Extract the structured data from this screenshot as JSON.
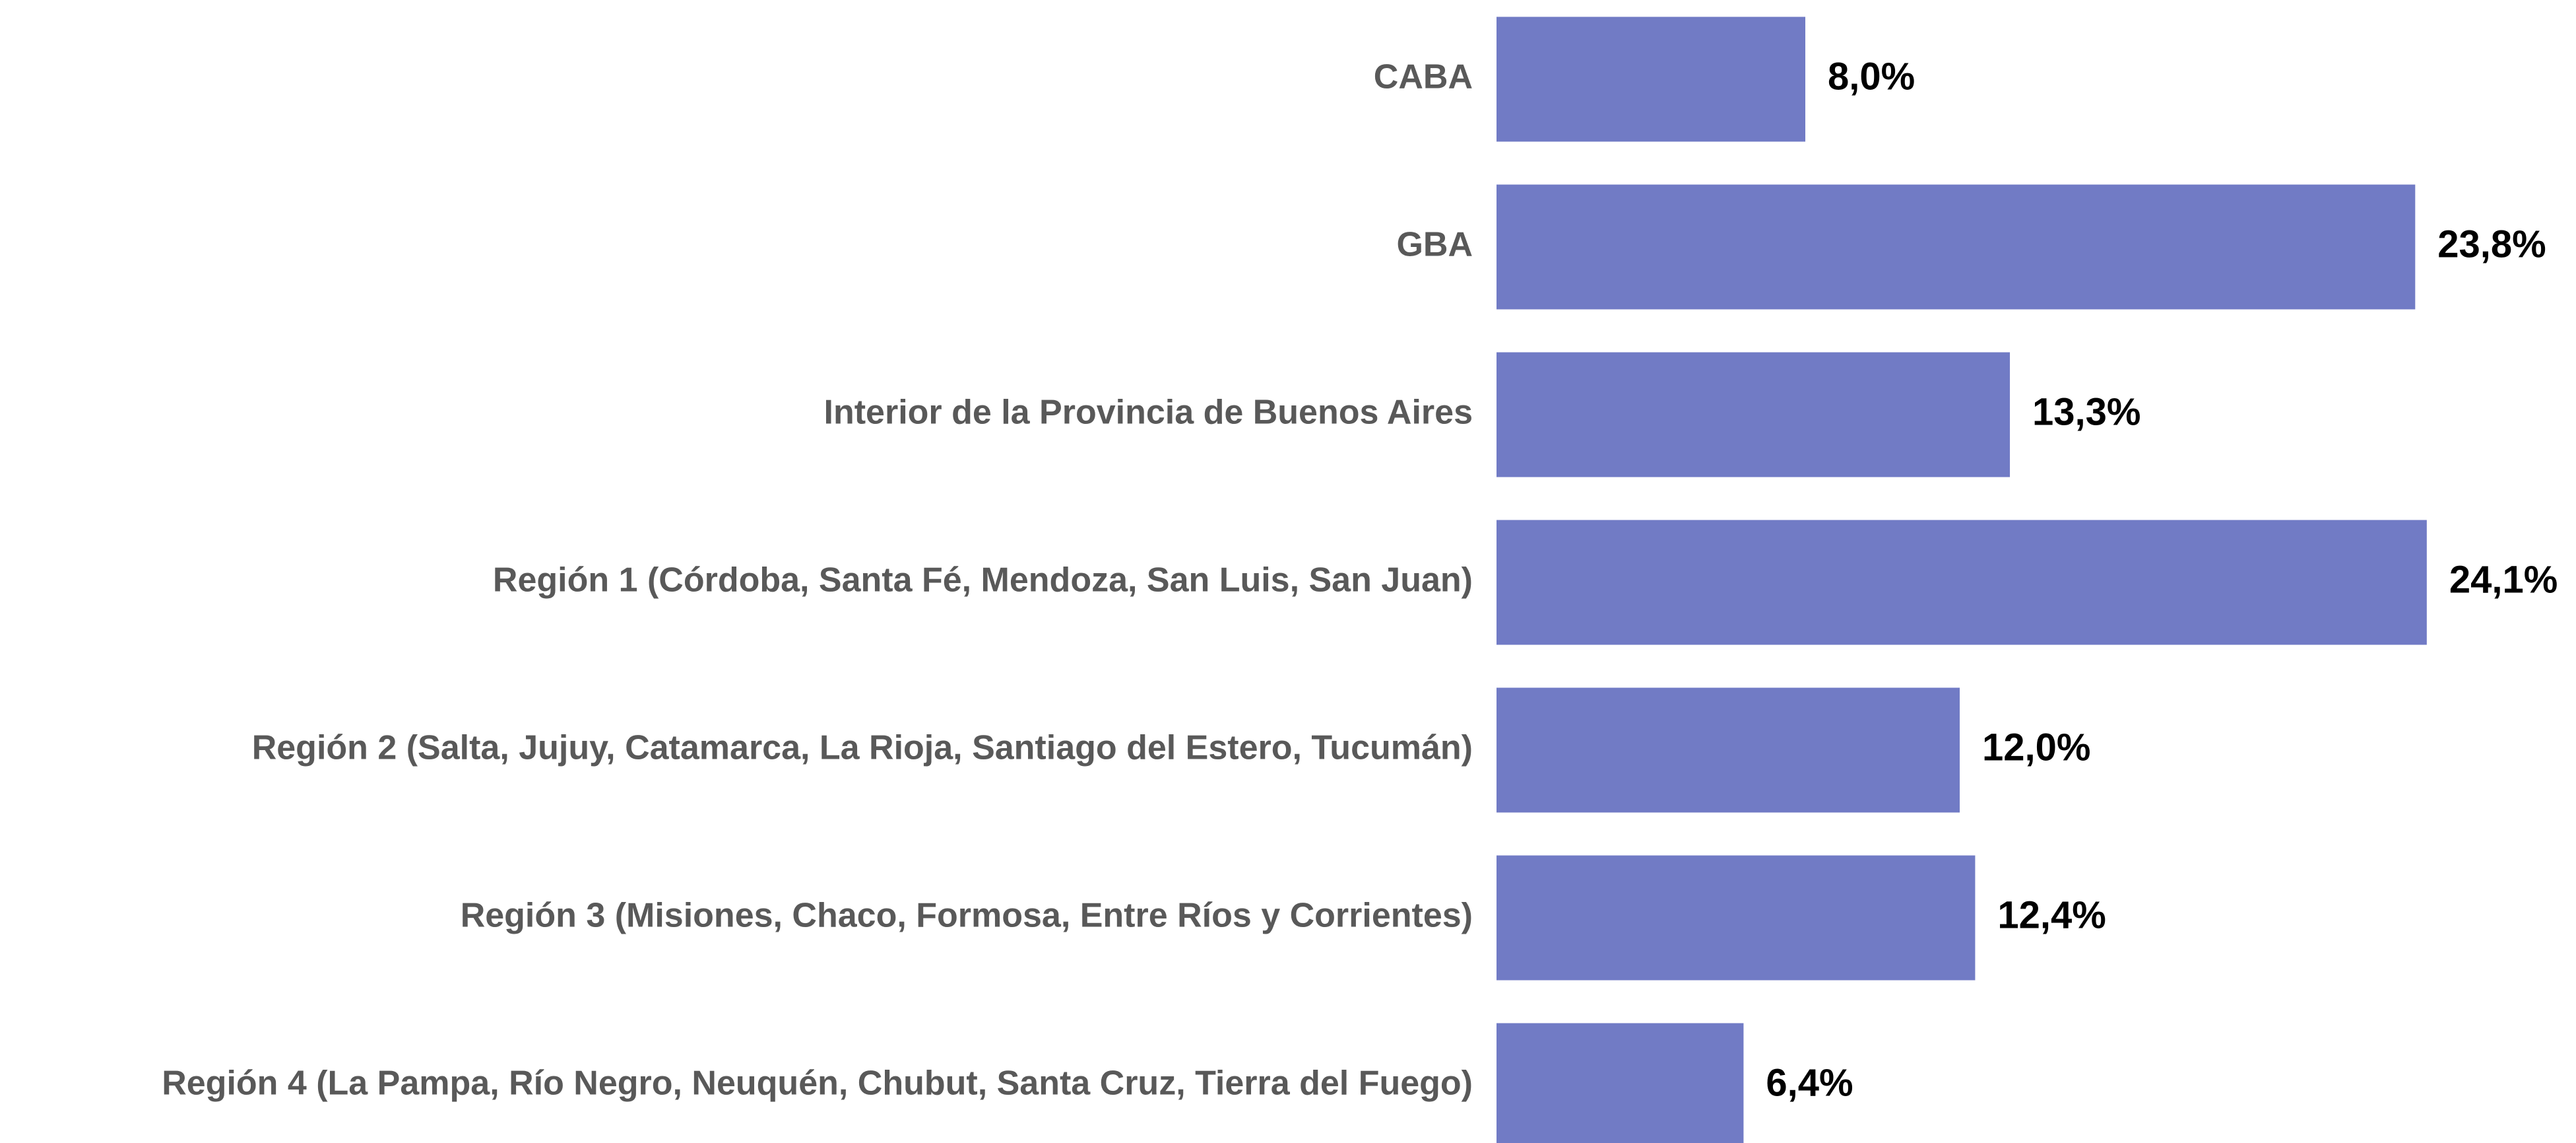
{
  "chart_data": {
    "type": "barh",
    "categories": [
      "CABA",
      "GBA",
      "Interior de la Provincia de Buenos Aires",
      "Región 1 (Córdoba, Santa Fé, Mendoza, San Luis, San Juan)",
      "Región 2 (Salta, Jujuy, Catamarca, La Rioja, Santiago del Estero, Tucumán)",
      "Región 3 (Misiones, Chaco, Formosa, Entre Ríos y Corrientes)",
      "Región 4 (La Pampa, Río Negro, Neuquén, Chubut, Santa Cruz, Tierra del Fuego)"
    ],
    "values": [
      8.0,
      23.8,
      13.3,
      24.1,
      12.0,
      12.4,
      6.4
    ],
    "value_labels": [
      "8,0%",
      "23,8%",
      "13,3%",
      "24,1%",
      "12,0%",
      "12,4%",
      "6,4%"
    ],
    "color": "#717bc5"
  }
}
